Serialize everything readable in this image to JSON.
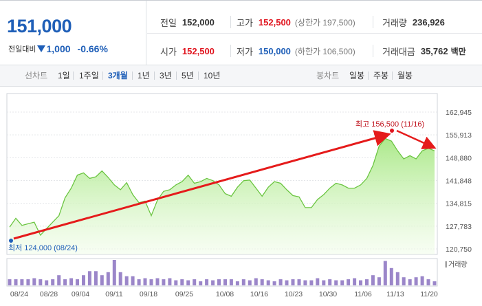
{
  "quote": {
    "price": "151,000",
    "change_label": "전일대비",
    "change_amount": "1,000",
    "change_percent": "-0.66%",
    "prev_close_label": "전일",
    "prev_close": "152,000",
    "high_label": "고가",
    "high": "152,500",
    "upper_limit": "(상한가 197,500)",
    "volume_label": "거래량",
    "volume": "236,926",
    "open_label": "시가",
    "open": "152,500",
    "low_label": "저가",
    "low": "150,000",
    "lower_limit": "(하한가 106,500)",
    "amount_label": "거래대금",
    "amount": "35,762",
    "amount_unit": "백만"
  },
  "periods": {
    "line_label": "선차트",
    "line_items": [
      "1일",
      "1주일",
      "3개월",
      "1년",
      "3년",
      "5년",
      "10년"
    ],
    "active": "3개월",
    "candle_label": "봉차트",
    "candle_items": [
      "일봉",
      "주봉",
      "월봉"
    ]
  },
  "colors": {
    "accent": "#1f5fb8",
    "up": "#e0141e",
    "line": "#6bc541",
    "fill": "#b8ee9c",
    "volume": "#9b86c9",
    "arrow": "#e51b1b"
  },
  "chart_data": {
    "type": "area",
    "y_ticks": [
      "162,945",
      "155,913",
      "148,880",
      "141,848",
      "134,815",
      "127,783",
      "120,750"
    ],
    "ylim": [
      120750,
      162945
    ],
    "x_labels": [
      "08/24",
      "08/28",
      "09/04",
      "09/11",
      "09/18",
      "09/25",
      "10/08",
      "10/16",
      "10/23",
      "10/30",
      "11/06",
      "11/13",
      "11/20"
    ],
    "values": [
      127500,
      130200,
      128000,
      128500,
      129000,
      125000,
      127000,
      129000,
      131000,
      136500,
      139500,
      143500,
      144200,
      142500,
      143000,
      144800,
      142800,
      140500,
      139000,
      141200,
      137500,
      135000,
      135500,
      131000,
      135800,
      138500,
      139000,
      140500,
      141500,
      143500,
      141000,
      141500,
      142500,
      141800,
      140500,
      137800,
      137000,
      139800,
      141800,
      142000,
      139500,
      137000,
      139800,
      141500,
      141000,
      139000,
      137200,
      136800,
      133500,
      133500,
      136000,
      137500,
      139500,
      141000,
      140500,
      139500,
      139500,
      140500,
      142500,
      146500,
      152500,
      154800,
      154000,
      151000,
      148500,
      149500,
      148500,
      151000,
      151800,
      151000
    ],
    "volumes": [
      6,
      6,
      6,
      6,
      7,
      6,
      5,
      6,
      10,
      6,
      7,
      6,
      10,
      14,
      14,
      10,
      13,
      25,
      13,
      9,
      9,
      6,
      7,
      6,
      7,
      6,
      7,
      5,
      6,
      5,
      6,
      4,
      6,
      5,
      6,
      6,
      6,
      4,
      6,
      5,
      7,
      6,
      5,
      4,
      6,
      5,
      6,
      6,
      5,
      5,
      7,
      5,
      6,
      5,
      5,
      6,
      7,
      5,
      6,
      10,
      8,
      24,
      17,
      13,
      8,
      6,
      8,
      9,
      6,
      4
    ],
    "max_annotation": "최고 156,500 (11/16)",
    "min_annotation": "최저 124,000 (08/24)",
    "volume_legend": "거래량"
  }
}
